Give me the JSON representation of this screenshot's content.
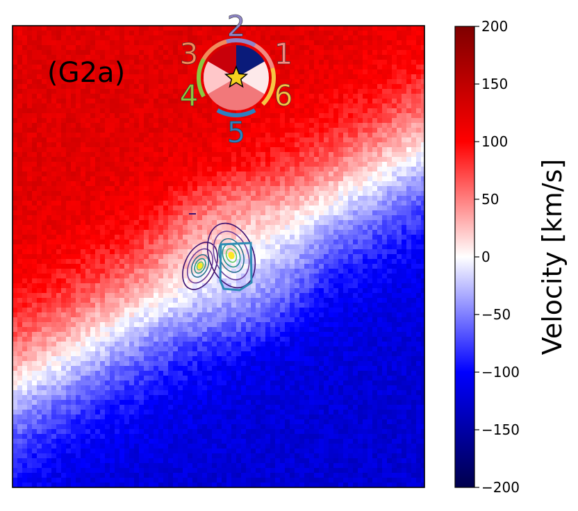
{
  "chart_data": {
    "type": "heatmap",
    "panel_label": "(G2a)",
    "colormap": "seismic",
    "colorbar": {
      "label": "Velocity [km/s]",
      "range": [
        -200,
        200
      ],
      "ticks": [
        "200",
        "150",
        "100",
        "50",
        "0",
        "−50",
        "−100",
        "−150",
        "−200"
      ]
    },
    "velocity_field": {
      "description_values": {
        "upper_left_max": 120,
        "lower_right_min": -110,
        "zero_line_angle_deg": 30
      }
    },
    "inset_wheel": {
      "numbers": [
        "1",
        "2",
        "3",
        "4",
        "5",
        "6"
      ],
      "number_colors": [
        "#f28b82",
        "#8f86c9",
        "#f28b5a",
        "#8cc63f",
        "#2e7fc0",
        "#f6c544"
      ],
      "wedge_colors": [
        "#0a1b7a",
        "#c8000a",
        "#a9adf3",
        "#ffc7c9",
        "#f2787a",
        "#fde9ea"
      ],
      "marker": "star",
      "marker_color": "#f5d21e"
    },
    "contours": {
      "colors": [
        "#3b0f70",
        "#6a3d9a",
        "#2c728e",
        "#21918c",
        "#5ec962",
        "#fde725"
      ],
      "aperture_color": "#2c8cb5"
    }
  }
}
